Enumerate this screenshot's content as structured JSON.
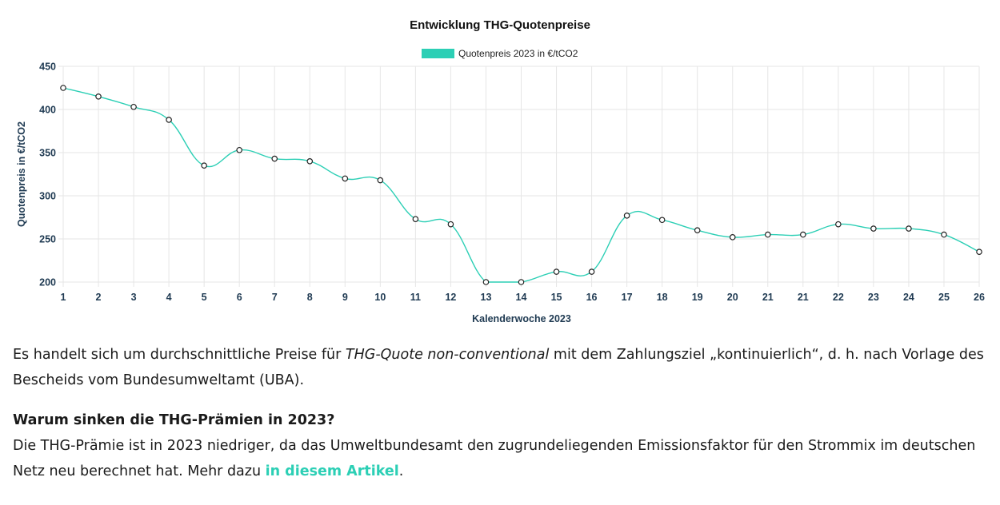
{
  "chart_data": {
    "type": "line",
    "title": "Entwicklung THG-Quotenpreise",
    "legend": {
      "position": "top-center",
      "label": "Quotenpreis 2023 in €/tCO2"
    },
    "xlabel": "Kalenderwoche 2023",
    "ylabel": "Quotenpreis in €/tCO2",
    "ylim": [
      200,
      450
    ],
    "yticks": [
      "200",
      "250",
      "300",
      "350",
      "400",
      "450"
    ],
    "categories": [
      "1",
      "2",
      "3",
      "4",
      "5",
      "6",
      "7",
      "8",
      "9",
      "10",
      "11",
      "12",
      "13",
      "14",
      "15",
      "16",
      "17",
      "18",
      "19",
      "20",
      "21",
      "21",
      "22",
      "23",
      "24",
      "25",
      "26"
    ],
    "series": [
      {
        "name": "Quotenpreis 2023 in €/tCO2",
        "color": "#2ccfb5",
        "values": [
          425,
          415,
          403,
          388,
          335,
          353,
          343,
          340,
          320,
          318,
          273,
          267,
          200,
          200,
          212,
          212,
          277,
          272,
          260,
          252,
          255,
          255,
          267,
          262,
          262,
          255,
          235
        ]
      }
    ],
    "grid": true
  },
  "content": {
    "note_before": "Es handelt sich um durchschnittliche Preise für ",
    "note_em": "THG-Quote non-conventional",
    "note_after": " mit dem Zahlungsziel „kontinuierlich“, d. h. nach Vorlage des Bescheids vom Bundesumweltamt (UBA).",
    "heading": "Warum sinken die THG-Prämien in 2023?",
    "body_before": "Die THG-Prämie ist in 2023 niedriger, da das Umweltbundesamt den zugrundeliegenden Emissionsfaktor für den Strommix im deutschen Netz neu berechnet hat. Mehr dazu ",
    "link_text": "in diesem Artikel",
    "body_after": "."
  },
  "colors": {
    "accent": "#2ccfb5",
    "grid": "#e6e6e6",
    "tick_text": "#1f3a52"
  }
}
